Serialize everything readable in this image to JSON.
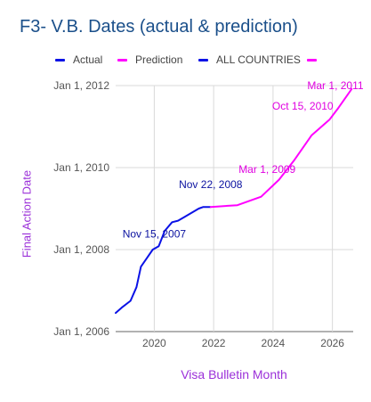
{
  "chart_data": {
    "type": "line",
    "title": "F3- V.B. Dates (actual & prediction)",
    "xlabel": "Visa Bulletin Month",
    "ylabel": "Final Action Date",
    "xlim": [
      2018.7,
      2026.7
    ],
    "ylim": [
      "2006-01-01",
      "2012-01-01"
    ],
    "x_ticks": [
      "2020",
      "2022",
      "2024",
      "2026"
    ],
    "y_ticks": [
      "Jan 1, 2006",
      "Jan 1, 2008",
      "Jan 1, 2010",
      "Jan 1, 2012"
    ],
    "grid": true,
    "legend_position": "top",
    "legend": [
      {
        "label": "Actual",
        "color": "#0b12e6"
      },
      {
        "label": "Prediction",
        "color": "#ff00ff"
      },
      {
        "label": "ALL COUNTRIES",
        "color": "#0b12e6"
      },
      {
        "label": "",
        "color": "#ff00ff"
      }
    ],
    "series": [
      {
        "name": "Actual",
        "color": "#0b12e6",
        "x": [
          2018.7,
          2018.9,
          2019.2,
          2019.4,
          2019.55,
          2019.75,
          2019.95,
          2020.15,
          2020.35,
          2020.6,
          2020.8,
          2021.0,
          2021.2,
          2021.5,
          2021.65,
          2021.9
        ],
        "y": [
          "2006-06-15",
          "2006-08-01",
          "2006-10-01",
          "2007-02-01",
          "2007-08-01",
          "2007-10-15",
          "2008-01-01",
          "2008-02-01",
          "2008-06-15",
          "2008-09-01",
          "2008-09-15",
          "2008-10-15",
          "2008-11-15",
          "2009-01-01",
          "2009-01-15",
          "2009-01-15"
        ]
      },
      {
        "name": "Prediction",
        "color": "#ff00ff",
        "x": [
          2021.9,
          2022.8,
          2023.6,
          2024.2,
          2024.7,
          2025.3,
          2025.9,
          2026.2,
          2026.65
        ],
        "y": [
          "2009-01-15",
          "2009-02-01",
          "2009-04-15",
          "2009-09-15",
          "2010-03-01",
          "2010-10-15",
          "2011-03-01",
          "2011-06-15",
          "2011-12-01"
        ]
      }
    ],
    "annotations": [
      {
        "text": "Nov 15, 2007",
        "color": "#0b12a0",
        "x": 2020.0,
        "y": "2008-04-15"
      },
      {
        "text": "Nov 22, 2008",
        "color": "#0b12a0",
        "x": 2021.9,
        "y": "2009-07-01"
      },
      {
        "text": "Mar 1, 2009",
        "color": "#e000e0",
        "x": 2023.8,
        "y": "2009-11-15"
      },
      {
        "text": "Oct 15, 2010",
        "color": "#e000e0",
        "x": 2025.0,
        "y": "2011-06-01"
      },
      {
        "text": "Mar 1, 2011",
        "color": "#e000e0",
        "x": 2026.1,
        "y": "2011-12-01"
      }
    ]
  }
}
